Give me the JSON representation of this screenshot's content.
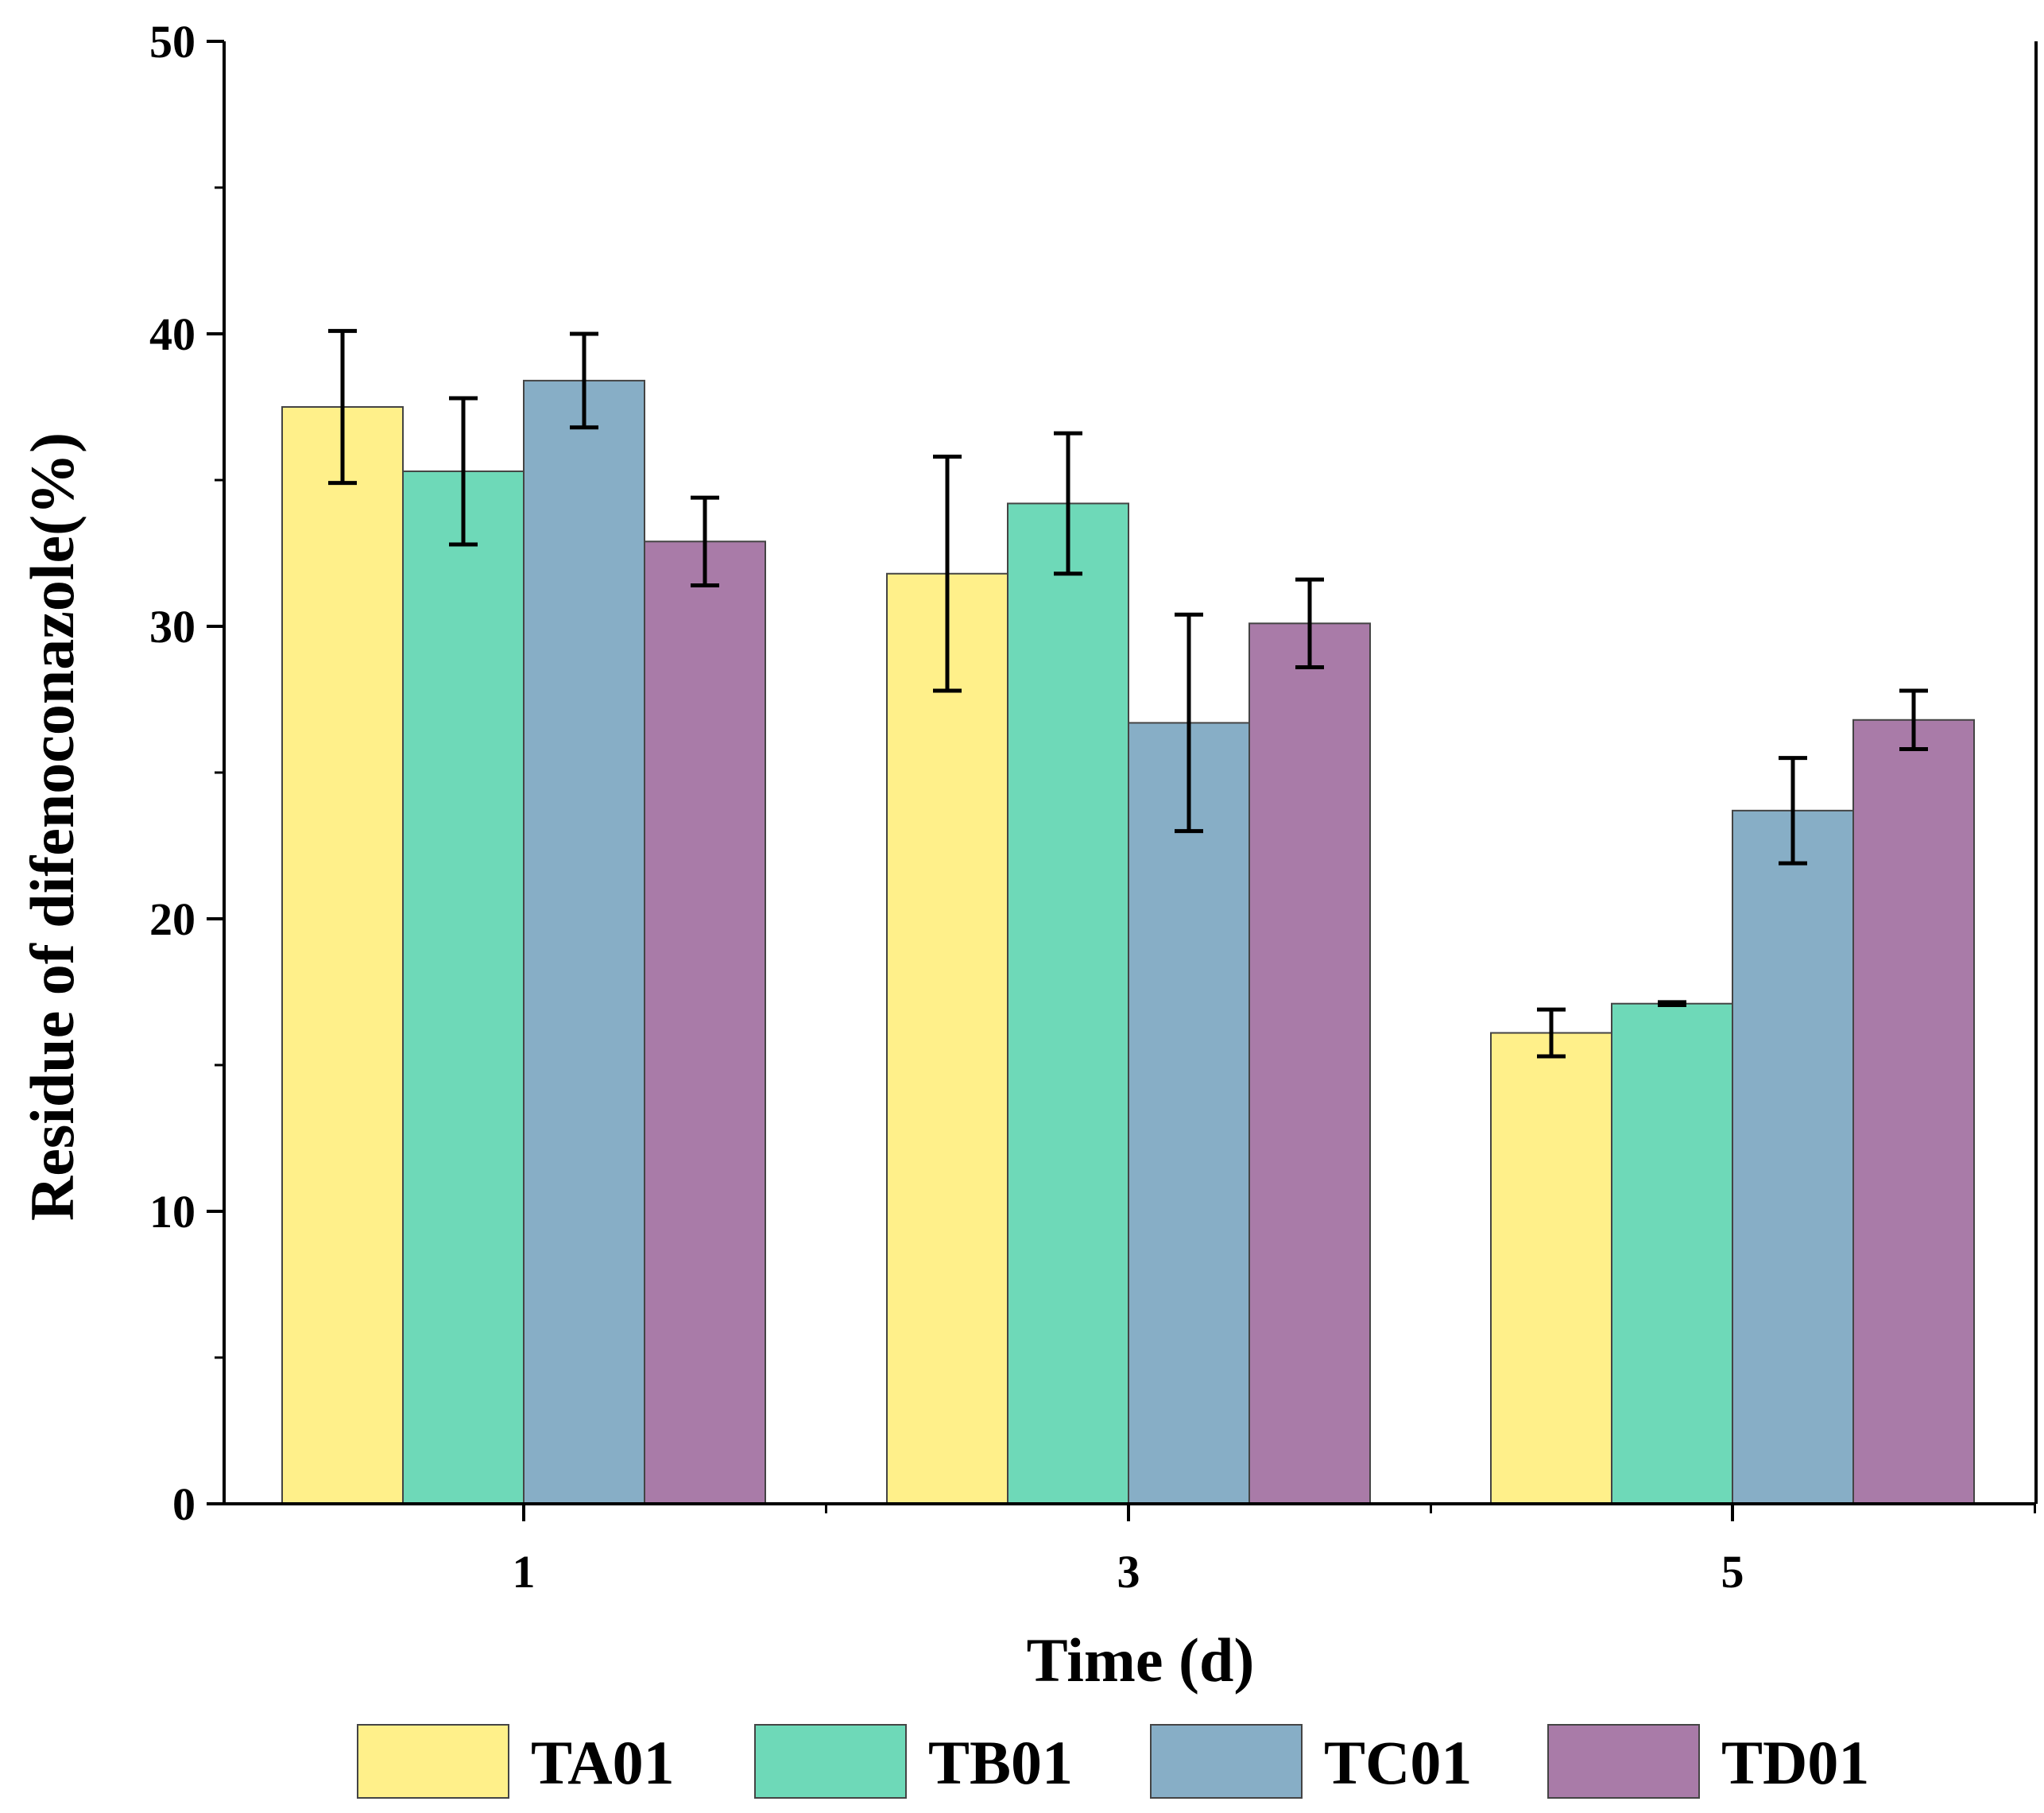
{
  "chart_data": {
    "type": "bar",
    "title": "",
    "xlabel": "Time (d)",
    "ylabel": "Residue of difenoconazole(%)",
    "categories": [
      "1",
      "3",
      "5"
    ],
    "ylim": [
      0,
      50
    ],
    "yticks": [
      0,
      10,
      20,
      30,
      40,
      50
    ],
    "grid": false,
    "legend_position": "bottom",
    "series": [
      {
        "name": "TA01",
        "color": "#FFF08A",
        "values": [
          37.5,
          31.8,
          16.1
        ],
        "errors": [
          2.6,
          4.0,
          0.8
        ]
      },
      {
        "name": "TB01",
        "color": "#6ED9B8",
        "values": [
          35.3,
          34.2,
          17.1
        ],
        "errors": [
          2.5,
          2.4,
          0.05
        ]
      },
      {
        "name": "TC01",
        "color": "#87AEC6",
        "values": [
          38.4,
          26.7,
          23.7
        ],
        "errors": [
          1.6,
          3.7,
          1.8
        ]
      },
      {
        "name": "TD01",
        "color": "#A97BA8",
        "values": [
          32.9,
          30.1,
          26.8
        ],
        "errors": [
          1.5,
          1.5,
          1.0
        ]
      }
    ]
  }
}
